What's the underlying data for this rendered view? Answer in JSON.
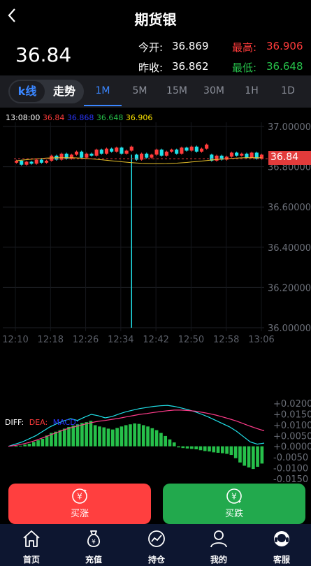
{
  "header": {
    "back_icon": "chevron-left-icon",
    "title": "期货银"
  },
  "quote": {
    "last_price": "36.84",
    "open_label": "今开:",
    "open_value": "36.869",
    "high_label": "最高:",
    "high_value": "36.906",
    "prev_close_label": "昨收:",
    "prev_close_value": "36.862",
    "low_label": "最低:",
    "low_value": "36.648"
  },
  "tabs": {
    "kline": "k线",
    "trend": "走势",
    "timeframes": [
      "1M",
      "5M",
      "15M",
      "30M",
      "1H",
      "1D"
    ],
    "active_timeframe": "1M"
  },
  "ma_legend": {
    "time": "13:08:00",
    "v1": "36.84",
    "v2": "36.868",
    "v3": "36.648",
    "v4": "36.906"
  },
  "chart_data": {
    "type": "candlestick",
    "y_ticks": [
      "37.00000",
      "36.80000",
      "36.60000",
      "36.40000",
      "36.20000",
      "36.00000"
    ],
    "ylim": [
      36.0,
      37.0
    ],
    "x_ticks": [
      "12:10",
      "12:18",
      "12:26",
      "12:34",
      "12:42",
      "12:50",
      "12:58",
      "13:06"
    ],
    "last_price_tag": "36.84",
    "spike_low": 36.0,
    "macd_legend": {
      "diff": "DIFF:",
      "dea": "DEA:",
      "macd": "MACD:"
    },
    "macd_ticks": [
      "+0.0200",
      "+0.0150",
      "+0.0100",
      "+0.0050",
      "+0.0000",
      "-0.0050",
      "-0.0100",
      "-0.0150"
    ],
    "macd_ylim": [
      -0.015,
      0.02
    ],
    "macd_hist": [
      0.0002,
      0.0003,
      0.0008,
      0.0012,
      0.002,
      0.0028,
      0.0035,
      0.005,
      0.0062,
      0.0068,
      0.0075,
      0.0082,
      0.009,
      0.0096,
      0.0102,
      0.0108,
      0.0112,
      0.0118,
      0.0098,
      0.0092,
      0.0088,
      0.0082,
      0.0078,
      0.0085,
      0.0092,
      0.0098,
      0.0102,
      0.0106,
      0.0104,
      0.0098,
      0.0092,
      0.0084,
      0.0075,
      0.0062,
      0.0048,
      0.0032,
      0.0018,
      -0.0005,
      -0.0008,
      -0.001,
      -0.0012,
      -0.0014,
      -0.0018,
      -0.0022,
      -0.0024,
      -0.0028,
      -0.003,
      -0.0032,
      -0.0035,
      -0.004,
      -0.0055,
      -0.0075,
      -0.009,
      -0.0098,
      -0.0105,
      -0.0095,
      -0.008
    ],
    "diff_line": [
      0.0,
      0.001,
      0.002,
      0.0035,
      0.005,
      0.007,
      0.009,
      0.0105,
      0.0118,
      0.0128,
      0.012,
      0.0135,
      0.0148,
      0.0142,
      0.0132,
      0.0138,
      0.015,
      0.016,
      0.0168,
      0.0175,
      0.018,
      0.0185,
      0.0188,
      0.019,
      0.0185,
      0.0178,
      0.017,
      0.016,
      0.0148,
      0.0135,
      0.012,
      0.0105,
      0.009,
      0.007,
      0.0045,
      0.002,
      0.001,
      0.0015
    ],
    "dea_line": [
      0.0,
      0.0004,
      0.001,
      0.0018,
      0.0028,
      0.004,
      0.0052,
      0.0064,
      0.0076,
      0.0086,
      0.0094,
      0.0102,
      0.011,
      0.0116,
      0.012,
      0.0125,
      0.013,
      0.0136,
      0.0142,
      0.0148,
      0.0152,
      0.0157,
      0.0161,
      0.0165,
      0.0168,
      0.0168,
      0.0166,
      0.0163,
      0.0158,
      0.0152,
      0.0145,
      0.0136,
      0.0127,
      0.0117,
      0.0105,
      0.0093,
      0.0082,
      0.0072
    ]
  },
  "actions": {
    "buy_label": "买涨",
    "sell_label": "买跌",
    "buy_icon": "yen-up-icon",
    "sell_icon": "yen-down-icon"
  },
  "nav": [
    {
      "label": "首页",
      "icon": "home-icon"
    },
    {
      "label": "充值",
      "icon": "money-bag-icon"
    },
    {
      "label": "持仓",
      "icon": "chart-circle-icon"
    },
    {
      "label": "我的",
      "icon": "user-icon"
    },
    {
      "label": "客服",
      "icon": "headset-icon"
    }
  ],
  "colors": {
    "up": "#ff3b3b",
    "down": "#26c04a",
    "accent": "#3a86ff",
    "cyan": "#20e0e8"
  }
}
